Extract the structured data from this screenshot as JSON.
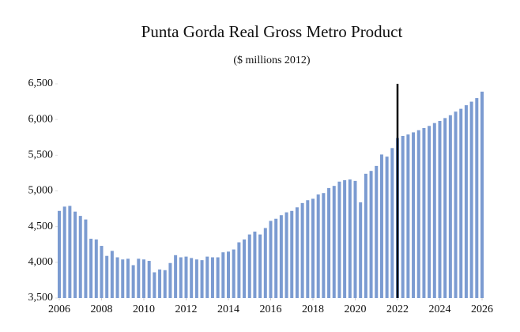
{
  "chart_data": {
    "type": "bar",
    "title": "Punta Gorda Real Gross Metro Product",
    "subtitle": "($ millions 2012)",
    "x": [
      2006,
      2006.25,
      2006.5,
      2006.75,
      2007,
      2007.25,
      2007.5,
      2007.75,
      2008,
      2008.25,
      2008.5,
      2008.75,
      2009,
      2009.25,
      2009.5,
      2009.75,
      2010,
      2010.25,
      2010.5,
      2010.75,
      2011,
      2011.25,
      2011.5,
      2011.75,
      2012,
      2012.25,
      2012.5,
      2012.75,
      2013,
      2013.25,
      2013.5,
      2013.75,
      2014,
      2014.25,
      2014.5,
      2014.75,
      2015,
      2015.25,
      2015.5,
      2015.75,
      2016,
      2016.25,
      2016.5,
      2016.75,
      2017,
      2017.25,
      2017.5,
      2017.75,
      2018,
      2018.25,
      2018.5,
      2018.75,
      2019,
      2019.25,
      2019.5,
      2019.75,
      2020,
      2020.25,
      2020.5,
      2020.75,
      2021,
      2021.25,
      2021.5,
      2021.75,
      2022,
      2022.25,
      2022.5,
      2022.75,
      2023,
      2023.25,
      2023.5,
      2023.75,
      2024,
      2024.25,
      2024.5,
      2024.75,
      2025,
      2025.25,
      2025.5,
      2025.75,
      2026
    ],
    "values": [
      4720,
      4780,
      4790,
      4710,
      4650,
      4600,
      4330,
      4320,
      4230,
      4090,
      4160,
      4070,
      4040,
      4050,
      3960,
      4050,
      4040,
      4020,
      3860,
      3900,
      3890,
      3990,
      4100,
      4070,
      4080,
      4060,
      4040,
      4030,
      4080,
      4070,
      4070,
      4140,
      4150,
      4180,
      4280,
      4320,
      4390,
      4430,
      4390,
      4480,
      4580,
      4610,
      4660,
      4700,
      4720,
      4770,
      4830,
      4870,
      4890,
      4950,
      4970,
      5040,
      5070,
      5130,
      5150,
      5160,
      5140,
      4840,
      5240,
      5280,
      5350,
      5510,
      5480,
      5600,
      5740,
      5770,
      5790,
      5820,
      5850,
      5880,
      5910,
      5950,
      5980,
      6020,
      6060,
      6110,
      6150,
      6200,
      6250,
      6300,
      6390
    ],
    "color": "#7b9bd1",
    "vline": 2022,
    "vline_color": "#000000",
    "xlim": [
      2006,
      2026
    ],
    "xticks": [
      2006,
      2008,
      2010,
      2012,
      2014,
      2016,
      2018,
      2020,
      2022,
      2024,
      2026
    ],
    "ylim": [
      3500,
      6500
    ],
    "yticks": [
      {
        "value": 3500,
        "label": "3,500"
      },
      {
        "value": 4000,
        "label": "4,000"
      },
      {
        "value": 4500,
        "label": "4,500"
      },
      {
        "value": 5000,
        "label": "5,000"
      },
      {
        "value": 5500,
        "label": "5,500"
      },
      {
        "value": 6000,
        "label": "6,000"
      },
      {
        "value": 6500,
        "label": "6,500"
      }
    ],
    "grid": false
  }
}
